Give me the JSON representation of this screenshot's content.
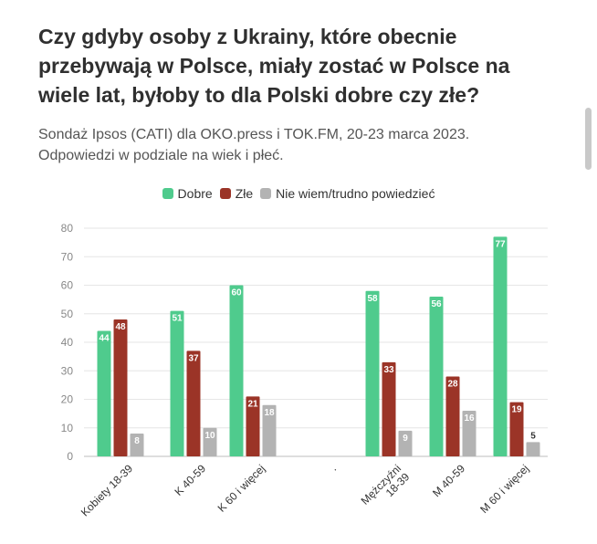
{
  "header": {
    "title": "Czy gdyby osoby z Ukrainy, które obecnie przebywają w Polsce, miały zostać w Polsce na wiele lat, byłoby to dla Polski dobre czy złe?",
    "subtitle": "Sondaż Ipsos (CATI) dla OKO.press i TOK.FM, 20-23 marca 2023.\nOdpowiedzi w podziale na wiek i płeć."
  },
  "chart_data": {
    "type": "bar",
    "title": "Czy gdyby osoby z Ukrainy, które obecnie przebywają w Polsce, miały zostać w Polsce na wiele lat, byłoby to dla Polski dobre czy złe?",
    "subtitle": "Sondaż Ipsos (CATI) dla OKO.press i TOK.FM, 20-23 marca 2023. Odpowiedzi w podziale na wiek i płeć.",
    "categories": [
      "Kobiety 18-39",
      "K 40-59",
      "K 60 i więcej",
      ".",
      "Mężczyźni 18-39",
      "M 40-59",
      "M 60 i więcej"
    ],
    "series": [
      {
        "name": "Dobre",
        "color": "#4fcb8d",
        "values": [
          44,
          51,
          60,
          null,
          58,
          56,
          77
        ]
      },
      {
        "name": "Złe",
        "color": "#9b3427",
        "values": [
          48,
          37,
          21,
          null,
          33,
          28,
          19
        ]
      },
      {
        "name": "Nie wiem/trudno powiedzieć",
        "color": "#b3b3b3",
        "values": [
          8,
          10,
          18,
          null,
          9,
          16,
          5
        ]
      }
    ],
    "yticks": [
      0,
      10,
      20,
      30,
      40,
      50,
      60,
      70,
      80
    ],
    "ylim": [
      0,
      80
    ],
    "grid": true,
    "legend_position": "top-center",
    "xlabel": "",
    "ylabel": ""
  }
}
